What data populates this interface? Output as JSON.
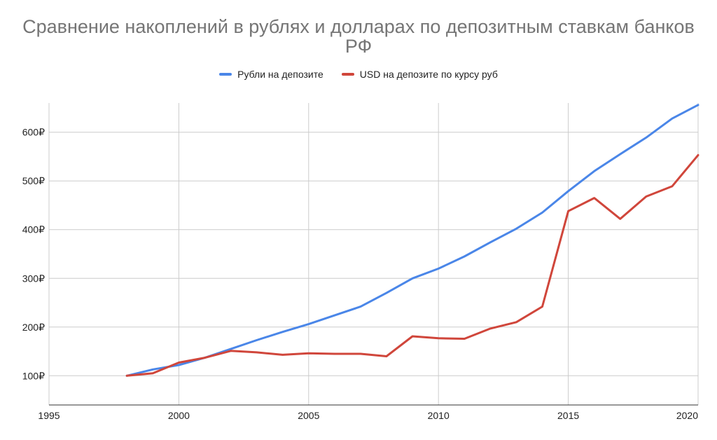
{
  "chart_data": {
    "type": "line",
    "title": "Сравнение накоплений в рублях и долларах по депозитным ставкам банков РФ",
    "xlabel": "",
    "ylabel": "",
    "xlim": [
      1995,
      2020
    ],
    "ylim": [
      40,
      660
    ],
    "x_ticks": [
      1995,
      2000,
      2005,
      2010,
      2015,
      2020
    ],
    "x_tick_labels": [
      "1995",
      "2000",
      "2005",
      "2010",
      "2015",
      "2020"
    ],
    "y_ticks": [
      100,
      200,
      300,
      400,
      500,
      600
    ],
    "y_tick_labels": [
      "100₽",
      "200₽",
      "300₽",
      "400₽",
      "500₽",
      "600₽"
    ],
    "grid": true,
    "legend_position": "top",
    "x": [
      1998,
      1999,
      2000,
      2001,
      2002,
      2003,
      2004,
      2005,
      2006,
      2007,
      2008,
      2009,
      2010,
      2011,
      2012,
      2013,
      2014,
      2015,
      2016,
      2017,
      2018,
      2019,
      2020
    ],
    "series": [
      {
        "name": "Рубли на депозите",
        "color": "#4a86e8",
        "values": [
          100,
          113,
          122,
          137,
          155,
          173,
          190,
          206,
          224,
          242,
          270,
          300,
          320,
          345,
          374,
          402,
          435,
          479,
          520,
          555,
          589,
          628,
          656
        ]
      },
      {
        "name": "USD на депозите по курсу руб",
        "color": "#d0463b",
        "values": [
          100,
          105,
          127,
          137,
          151,
          148,
          143,
          146,
          145,
          145,
          140,
          181,
          177,
          176,
          197,
          210,
          242,
          438,
          465,
          422,
          468,
          489,
          553
        ]
      }
    ]
  }
}
